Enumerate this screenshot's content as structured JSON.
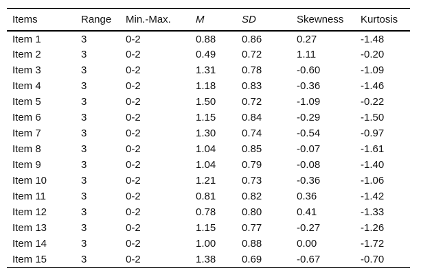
{
  "table": {
    "columns": [
      {
        "label": "Items",
        "italic": false
      },
      {
        "label": "Range",
        "italic": false
      },
      {
        "label": "Min.-Max.",
        "italic": false
      },
      {
        "label": "M",
        "italic": true
      },
      {
        "label": "SD",
        "italic": true
      },
      {
        "label": "Skewness",
        "italic": false
      },
      {
        "label": "Kurtosis",
        "italic": false
      }
    ],
    "rows": [
      [
        "Item 1",
        "3",
        "0-2",
        "0.88",
        "0.86",
        "0.27",
        "-1.48"
      ],
      [
        "Item 2",
        "3",
        "0-2",
        "0.49",
        "0.72",
        "1.11",
        "-0.20"
      ],
      [
        "Item 3",
        "3",
        "0-2",
        "1.31",
        "0.78",
        "-0.60",
        "-1.09"
      ],
      [
        "Item 4",
        "3",
        "0-2",
        "1.18",
        "0.83",
        "-0.36",
        "-1.46"
      ],
      [
        "Item 5",
        "3",
        "0-2",
        "1.50",
        "0.72",
        "-1.09",
        "-0.22"
      ],
      [
        "Item 6",
        "3",
        "0-2",
        "1.15",
        "0.84",
        "-0.29",
        "-1.50"
      ],
      [
        "Item 7",
        "3",
        "0-2",
        "1.30",
        "0.74",
        "-0.54",
        "-0.97"
      ],
      [
        "Item 8",
        "3",
        "0-2",
        "1.04",
        "0.85",
        "-0.07",
        "-1.61"
      ],
      [
        "Item 9",
        "3",
        "0-2",
        "1.04",
        "0.79",
        "-0.08",
        "-1.40"
      ],
      [
        "Item 10",
        "3",
        "0-2",
        "1.21",
        "0.73",
        "-0.36",
        "-1.06"
      ],
      [
        "Item 11",
        "3",
        "0-2",
        "0.81",
        "0.82",
        "0.36",
        "-1.42"
      ],
      [
        "Item 12",
        "3",
        "0-2",
        "0.78",
        "0.80",
        "0.41",
        "-1.33"
      ],
      [
        "Item 13",
        "3",
        "0-2",
        "1.15",
        "0.77",
        "-0.27",
        "-1.26"
      ],
      [
        "Item 14",
        "3",
        "0-2",
        "1.00",
        "0.88",
        "0.00",
        "-1.72"
      ],
      [
        "Item 15",
        "3",
        "0-2",
        "1.38",
        "0.69",
        "-0.67",
        "-0.70"
      ]
    ],
    "colors": {
      "text": "#111111",
      "rule": "#000000",
      "background": "#ffffff"
    }
  }
}
